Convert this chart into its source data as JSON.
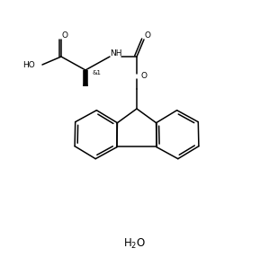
{
  "background_color": "#ffffff",
  "line_color": "#000000",
  "line_width": 1.1,
  "fig_width": 2.99,
  "fig_height": 2.96,
  "dpi": 100,
  "stereo_label": "&1",
  "nh_label": "NH",
  "ho_label": "HO",
  "o_label": "O",
  "h2o_label": "H₂O"
}
